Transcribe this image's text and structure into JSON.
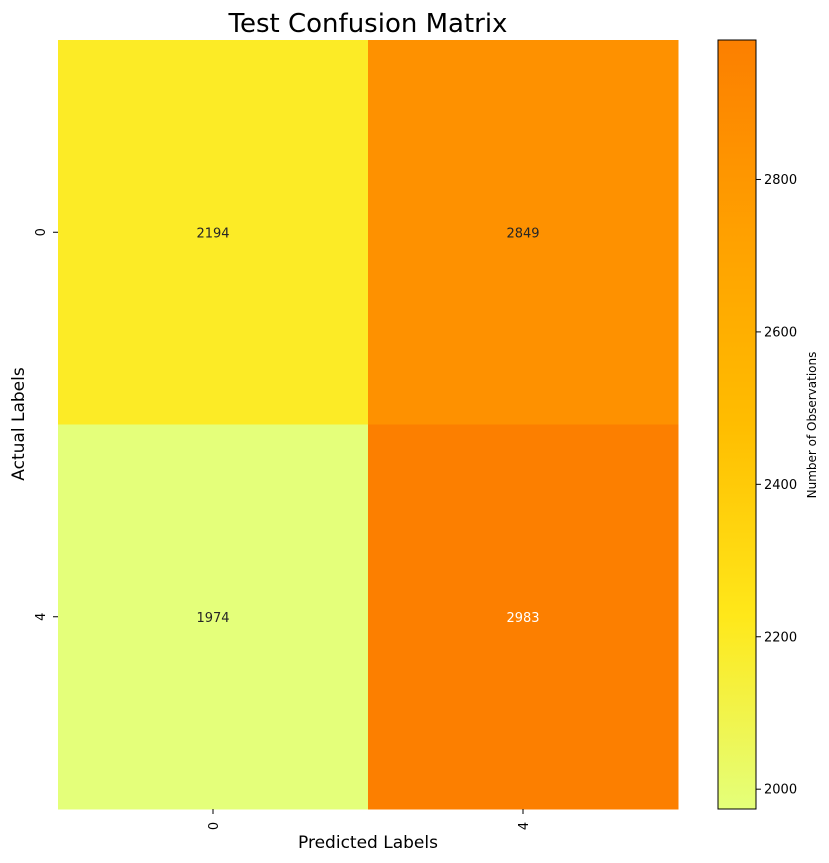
{
  "chart_data": {
    "type": "heatmap",
    "title": "Test Confusion Matrix",
    "xlabel": "Predicted Labels",
    "ylabel": "Actual Labels",
    "x_categories": [
      "0",
      "4"
    ],
    "y_categories": [
      "0",
      "4"
    ],
    "values": [
      [
        2194,
        2849
      ],
      [
        1974,
        2983
      ]
    ],
    "colorbar": {
      "label": "Number of Observations",
      "range": [
        1974,
        2983
      ],
      "ticks": [
        2000,
        2200,
        2400,
        2600,
        2800
      ],
      "colormap": "Wistia",
      "stops": [
        "#e4ff7a",
        "#ffe81a",
        "#ffbd00",
        "#ffa000",
        "#fc7f00"
      ]
    }
  }
}
